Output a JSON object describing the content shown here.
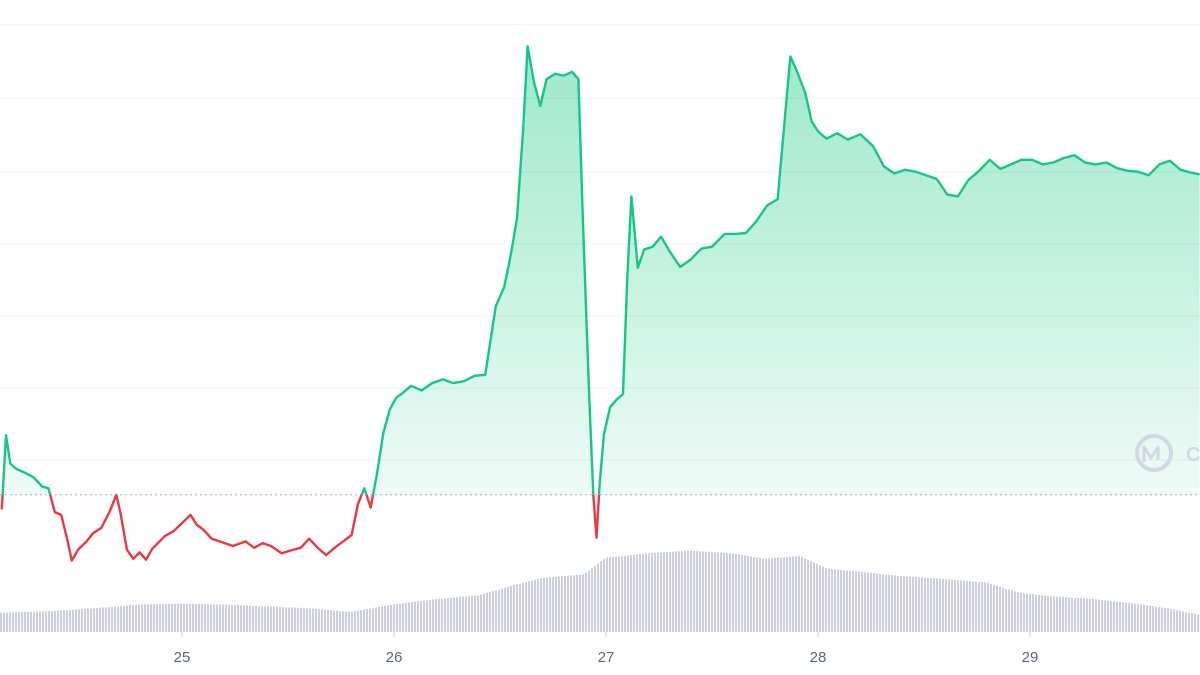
{
  "chart_data": {
    "type": "area",
    "title": "",
    "xlabel": "",
    "ylabel": "",
    "x_ticks": [
      {
        "day": 25,
        "label": "25"
      },
      {
        "day": 26,
        "label": "26"
      },
      {
        "day": 27,
        "label": "27"
      },
      {
        "day": 28,
        "label": "28"
      },
      {
        "day": 29,
        "label": "29"
      }
    ],
    "x_range": [
      24.15,
      29.8
    ],
    "y_range": [
      35,
      101
    ],
    "y_axis_labels_visible": false,
    "grid": "horizontal",
    "baseline_value": 50,
    "series": [
      {
        "points": [
          [
            24.15,
            48.4
          ],
          [
            24.17,
            56.5
          ],
          [
            24.19,
            53.4
          ],
          [
            24.22,
            52.8
          ],
          [
            24.26,
            52.4
          ],
          [
            24.3,
            51.9
          ],
          [
            24.34,
            50.9
          ],
          [
            24.37,
            50.7
          ],
          [
            24.4,
            48.1
          ],
          [
            24.43,
            47.8
          ],
          [
            24.46,
            45.0
          ],
          [
            24.48,
            42.8
          ],
          [
            24.51,
            44.0
          ],
          [
            24.55,
            44.9
          ],
          [
            24.58,
            45.8
          ],
          [
            24.62,
            46.4
          ],
          [
            24.66,
            48.2
          ],
          [
            24.69,
            50.0
          ],
          [
            24.71,
            48.0
          ],
          [
            24.74,
            44.0
          ],
          [
            24.77,
            43.0
          ],
          [
            24.8,
            43.7
          ],
          [
            24.83,
            42.9
          ],
          [
            24.86,
            44.1
          ],
          [
            24.89,
            44.8
          ],
          [
            24.92,
            45.5
          ],
          [
            24.96,
            46.0
          ],
          [
            25.0,
            46.9
          ],
          [
            25.04,
            47.8
          ],
          [
            25.07,
            46.7
          ],
          [
            25.1,
            46.2
          ],
          [
            25.14,
            45.2
          ],
          [
            25.19,
            44.8
          ],
          [
            25.24,
            44.4
          ],
          [
            25.3,
            44.9
          ],
          [
            25.34,
            44.2
          ],
          [
            25.38,
            44.7
          ],
          [
            25.42,
            44.4
          ],
          [
            25.47,
            43.6
          ],
          [
            25.51,
            43.9
          ],
          [
            25.56,
            44.2
          ],
          [
            25.6,
            45.2
          ],
          [
            25.64,
            44.2
          ],
          [
            25.68,
            43.4
          ],
          [
            25.72,
            44.2
          ],
          [
            25.76,
            44.9
          ],
          [
            25.8,
            45.6
          ],
          [
            25.83,
            49.0
          ],
          [
            25.86,
            50.7
          ],
          [
            25.89,
            48.6
          ],
          [
            25.92,
            52.3
          ],
          [
            25.95,
            56.8
          ],
          [
            25.98,
            59.3
          ],
          [
            26.01,
            60.6
          ],
          [
            26.04,
            61.1
          ],
          [
            26.08,
            61.9
          ],
          [
            26.13,
            61.4
          ],
          [
            26.18,
            62.2
          ],
          [
            26.23,
            62.6
          ],
          [
            26.28,
            62.2
          ],
          [
            26.33,
            62.4
          ],
          [
            26.38,
            63.0
          ],
          [
            26.43,
            63.1
          ],
          [
            26.48,
            70.6
          ],
          [
            26.52,
            72.7
          ],
          [
            26.55,
            76.1
          ],
          [
            26.58,
            80.2
          ],
          [
            26.61,
            90.2
          ],
          [
            26.63,
            99.0
          ],
          [
            26.66,
            95.1
          ],
          [
            26.69,
            92.5
          ],
          [
            26.72,
            95.4
          ],
          [
            26.76,
            96.0
          ],
          [
            26.8,
            95.8
          ],
          [
            26.84,
            96.2
          ],
          [
            26.87,
            95.4
          ],
          [
            26.89,
            80.6
          ],
          [
            26.92,
            61.3
          ],
          [
            26.94,
            50.0
          ],
          [
            26.955,
            45.3
          ],
          [
            26.97,
            51.1
          ],
          [
            26.99,
            56.6
          ],
          [
            27.02,
            59.6
          ],
          [
            27.05,
            60.4
          ],
          [
            27.08,
            61.0
          ],
          [
            27.1,
            73.5
          ],
          [
            27.12,
            82.6
          ],
          [
            27.15,
            74.8
          ],
          [
            27.18,
            76.8
          ],
          [
            27.22,
            77.1
          ],
          [
            27.26,
            78.2
          ],
          [
            27.3,
            76.6
          ],
          [
            27.35,
            74.9
          ],
          [
            27.4,
            75.7
          ],
          [
            27.45,
            76.9
          ],
          [
            27.5,
            77.1
          ],
          [
            27.56,
            78.5
          ],
          [
            27.61,
            78.5
          ],
          [
            27.66,
            78.6
          ],
          [
            27.71,
            79.9
          ],
          [
            27.76,
            81.6
          ],
          [
            27.81,
            82.3
          ],
          [
            27.85,
            92.8
          ],
          [
            27.87,
            97.9
          ],
          [
            27.9,
            96.3
          ],
          [
            27.94,
            93.9
          ],
          [
            27.97,
            90.8
          ],
          [
            28.0,
            89.7
          ],
          [
            28.04,
            88.9
          ],
          [
            28.09,
            89.5
          ],
          [
            28.14,
            88.8
          ],
          [
            28.2,
            89.4
          ],
          [
            28.26,
            88.1
          ],
          [
            28.31,
            85.9
          ],
          [
            28.36,
            85.1
          ],
          [
            28.41,
            85.5
          ],
          [
            28.46,
            85.3
          ],
          [
            28.51,
            84.9
          ],
          [
            28.56,
            84.5
          ],
          [
            28.61,
            82.8
          ],
          [
            28.66,
            82.6
          ],
          [
            28.71,
            84.4
          ],
          [
            28.76,
            85.4
          ],
          [
            28.81,
            86.6
          ],
          [
            28.86,
            85.6
          ],
          [
            28.91,
            86.1
          ],
          [
            28.96,
            86.6
          ],
          [
            29.01,
            86.6
          ],
          [
            29.06,
            86.1
          ],
          [
            29.11,
            86.3
          ],
          [
            29.16,
            86.8
          ],
          [
            29.21,
            87.1
          ],
          [
            29.26,
            86.3
          ],
          [
            29.31,
            86.1
          ],
          [
            29.36,
            86.3
          ],
          [
            29.41,
            85.7
          ],
          [
            29.46,
            85.4
          ],
          [
            29.51,
            85.3
          ],
          [
            29.56,
            84.9
          ],
          [
            29.61,
            86.1
          ],
          [
            29.66,
            86.5
          ],
          [
            29.71,
            85.5
          ],
          [
            29.76,
            85.2
          ],
          [
            29.8,
            85.0
          ]
        ]
      }
    ],
    "volume": {
      "points": [
        [
          24.15,
          37.1
        ],
        [
          24.4,
          37.3
        ],
        [
          24.65,
          37.7
        ],
        [
          24.8,
          38.0
        ],
        [
          25.0,
          38.1
        ],
        [
          25.2,
          38.0
        ],
        [
          25.4,
          37.8
        ],
        [
          25.6,
          37.6
        ],
        [
          25.8,
          37.2
        ],
        [
          26.0,
          38.0
        ],
        [
          26.2,
          38.6
        ],
        [
          26.4,
          39.0
        ],
        [
          26.55,
          40.0
        ],
        [
          26.7,
          40.9
        ],
        [
          26.9,
          41.3
        ],
        [
          27.0,
          43.1
        ],
        [
          27.2,
          43.6
        ],
        [
          27.4,
          43.9
        ],
        [
          27.6,
          43.6
        ],
        [
          27.75,
          43.0
        ],
        [
          27.92,
          43.3
        ],
        [
          28.05,
          41.9
        ],
        [
          28.2,
          41.6
        ],
        [
          28.4,
          41.1
        ],
        [
          28.6,
          40.8
        ],
        [
          28.8,
          40.4
        ],
        [
          28.95,
          39.3
        ],
        [
          29.1,
          38.9
        ],
        [
          29.3,
          38.6
        ],
        [
          29.5,
          38.1
        ],
        [
          29.65,
          37.6
        ],
        [
          29.8,
          36.9
        ]
      ]
    },
    "colors": {
      "up_line": "#16c784",
      "down_line": "#ea3943",
      "up_fill": "#16c784",
      "down_fill": "#ea3943",
      "volume": "#c9cde6",
      "grid": "#eef0f3",
      "baseline": "#a6b0c3",
      "watermark": "#cfd6e4"
    },
    "watermark_icon": "coinmarketcap-logo-icon",
    "watermark_text": "C"
  }
}
